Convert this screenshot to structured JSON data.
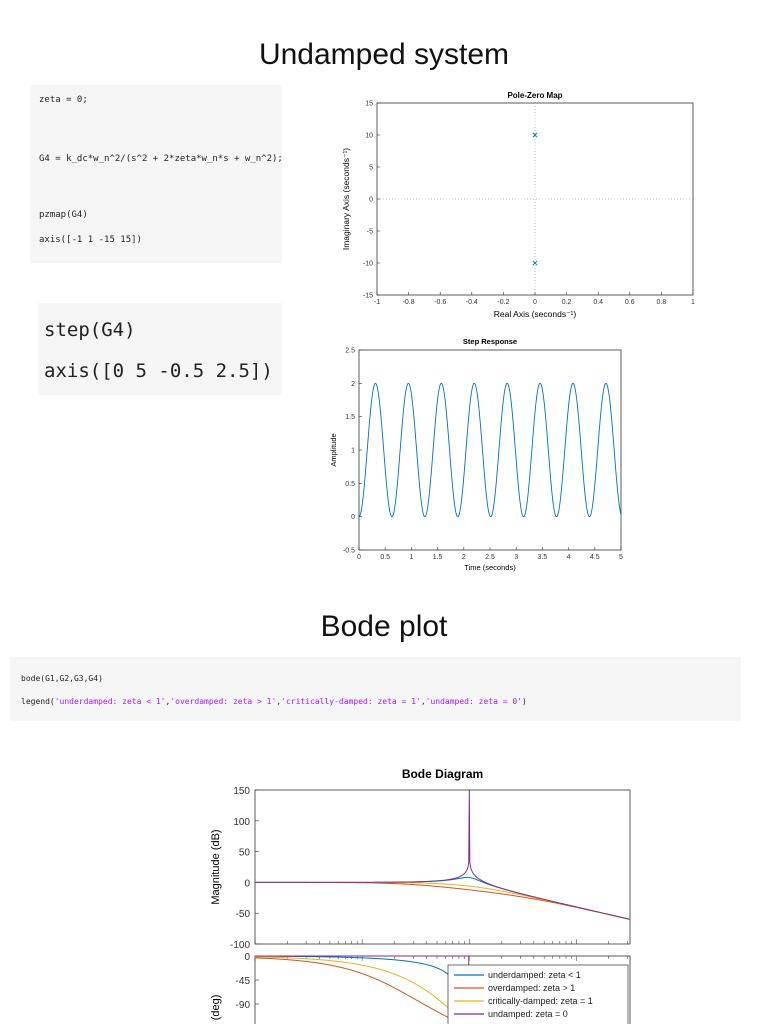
{
  "titles": {
    "undamped": "Undamped system",
    "bode": "Bode plot"
  },
  "code1": {
    "lines": [
      "zeta = 0;",
      "G4 = k_dc*w_n^2/(s^2 + 2*zeta*w_n*s + w_n^2);",
      "pzmap(G4)",
      "axis([-1 1 -15 15])"
    ]
  },
  "code2": {
    "lines": [
      "step(G4)",
      "axis([0 5 -0.5 2.5])"
    ]
  },
  "code3": {
    "line1": "bode(G1,G2,G3,G4)",
    "legend_fn": "legend(",
    "legend_args": [
      "'underdamped: zeta < 1'",
      "'overdamped: zeta > 1'",
      "'critically-damped: zeta = 1'",
      "'undamped: zeta = 0'"
    ],
    "legend_sep": ",",
    "legend_close": ")"
  },
  "colors": {
    "blue": "#0072bd",
    "orange": "#d95319",
    "yellow": "#edb120",
    "purple": "#7e2f8e",
    "grid": "#bbbbbb"
  },
  "chart_data": [
    {
      "type": "scatter",
      "title": "Pole-Zero Map",
      "xlabel": "Real Axis (seconds⁻¹)",
      "ylabel": "Imaginary Axis (seconds⁻¹)",
      "xlim": [
        -1,
        1
      ],
      "ylim": [
        -15,
        15
      ],
      "xticks": [
        "-1",
        "-0.8",
        "-0.6",
        "-0.4",
        "-0.2",
        "0",
        "0.2",
        "0.4",
        "0.6",
        "0.8",
        "1"
      ],
      "yticks": [
        "15",
        "10",
        "5",
        "0",
        "-5",
        "-10",
        "-15"
      ],
      "points": [
        {
          "x": 0,
          "y": 10,
          "marker": "x"
        },
        {
          "x": 0,
          "y": -10,
          "marker": "x"
        }
      ]
    },
    {
      "type": "line",
      "title": "Step Response",
      "xlabel": "Time (seconds)",
      "ylabel": "Amplitude",
      "xlim": [
        0,
        5
      ],
      "ylim": [
        -0.5,
        2.5
      ],
      "xticks": [
        "0",
        "0.5",
        "1",
        "1.5",
        "2",
        "2.5",
        "3",
        "3.5",
        "4",
        "4.5",
        "5"
      ],
      "yticks": [
        "2.5",
        "2",
        "1.5",
        "1",
        "0.5",
        "0",
        "-0.5"
      ],
      "series": [
        {
          "formula": "1 - cos(10 t)",
          "frequency_rad_s": 10,
          "mean": 1,
          "amplitude": 1
        }
      ]
    },
    {
      "type": "line",
      "title": "Bode Diagram",
      "ylabel_magnitude": "Magnitude (dB)",
      "ylabel_phase": "e (deg)",
      "mag_yticks": [
        "150",
        "100",
        "50",
        "0",
        "-50",
        "-100"
      ],
      "phase_yticks": [
        "0",
        "-45",
        "-90"
      ],
      "mag_ylim": [
        -100,
        150
      ],
      "phase_ylim": [
        -90,
        0
      ],
      "natural_frequency_rad_s": 10,
      "series": [
        {
          "name": "underdamped: zeta < 1",
          "zeta": 0.2
        },
        {
          "name": "overdamped: zeta > 1",
          "zeta": 2
        },
        {
          "name": "critically-damped: zeta = 1",
          "zeta": 1
        },
        {
          "name": "undamped: zeta = 0",
          "zeta": 0
        }
      ]
    }
  ]
}
